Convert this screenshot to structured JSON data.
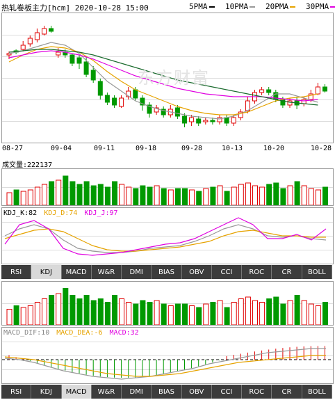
{
  "header": {
    "title": "热轧卷板主力[hcm] 2020-10-28 15:00",
    "ma_legend": [
      {
        "label": "5PMA",
        "color": "#000000"
      },
      {
        "label": "10PMA",
        "color": "#999999"
      },
      {
        "label": "20PMA",
        "color": "#e6a300"
      },
      {
        "label": "30PMA",
        "color": "#e000e0"
      },
      {
        "label": "",
        "color": "#1b6b2e"
      }
    ]
  },
  "watermark": "东方财富",
  "dates": [
    "08-27",
    "09-04",
    "09-11",
    "09-18",
    "09-28",
    "10-13",
    "10-20",
    "10-28"
  ],
  "volume": {
    "label": "成交量:222137"
  },
  "kdj": {
    "k_label": "KDJ_K:82",
    "d_label": "KDJ_D:74",
    "j_label": "KDJ_J:97"
  },
  "macd": {
    "dif_label": "MACD_DIF:10",
    "dea_label": "MACD_DEA:-6",
    "macd_label": "MACD:32"
  },
  "tabs_row1": {
    "items": [
      "RSI",
      "KDJ",
      "MACD",
      "W&R",
      "DMI",
      "BIAS",
      "OBV",
      "CCI",
      "ROC",
      "CR",
      "BOLL"
    ],
    "active": "KDJ"
  },
  "tabs_row2": {
    "items": [
      "RSI",
      "KDJ",
      "MACD",
      "W&R",
      "DMI",
      "BIAS",
      "OBV",
      "CCI",
      "ROC",
      "CR",
      "BOLL"
    ],
    "active": "MACD"
  },
  "colors": {
    "up": "#e00000",
    "down": "#009900"
  }
}
